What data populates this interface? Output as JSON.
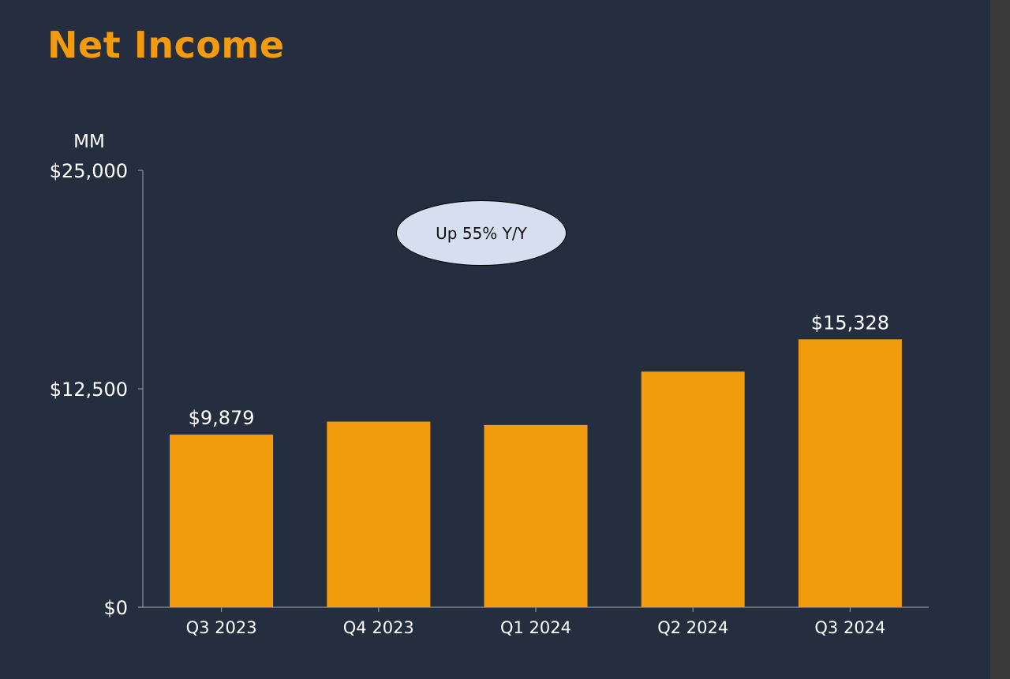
{
  "title": "Net Income",
  "callout": "Up 55% Y/Y",
  "colors": {
    "background": "#252e3e",
    "bar": "#f29b0d",
    "title": "#f29b0d",
    "axis": "#8a8f99",
    "callout_fill": "#d6dff0"
  },
  "chart_data": {
    "type": "bar",
    "ylabel": "MM",
    "xlabel": "",
    "categories": [
      "Q3 2023",
      "Q4 2023",
      "Q1 2024",
      "Q2 2024",
      "Q3 2024"
    ],
    "values": [
      9879,
      10624,
      10431,
      13485,
      15328
    ],
    "data_labels": [
      "$9,879",
      null,
      null,
      null,
      "$15,328"
    ],
    "ylim": [
      0,
      25000
    ],
    "yticks": [
      0,
      12500,
      25000
    ],
    "ytick_labels": [
      "$0",
      "$12,500",
      "$25,000"
    ],
    "grid": false,
    "legend": "none"
  }
}
